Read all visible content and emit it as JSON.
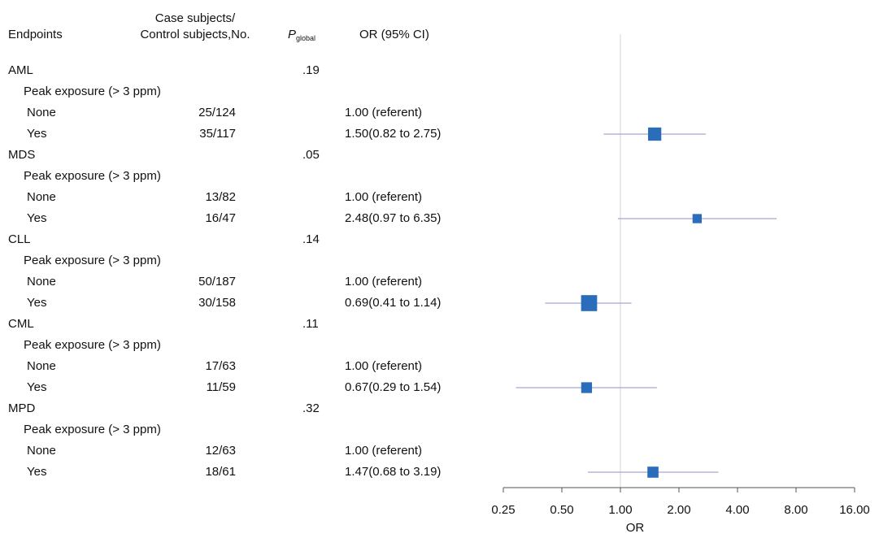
{
  "table": {
    "headers": {
      "endpoints": "Endpoints",
      "cases_line1": "Case subjects/",
      "cases_line2": "Control subjects,No.",
      "p_main": "P",
      "p_sub": "global",
      "or": "OR (95% CI)"
    },
    "rows": [
      {
        "type": "endpoint",
        "label": "AML",
        "p": ".19"
      },
      {
        "type": "sub",
        "label": "Peak exposure (> 3 ppm)"
      },
      {
        "type": "level",
        "label": "None",
        "counts": "25/124",
        "or_text": "1.00 (referent)"
      },
      {
        "type": "level",
        "label": "Yes",
        "counts": "35/117",
        "or_text": "1.50(0.82 to 2.75)"
      },
      {
        "type": "endpoint",
        "label": "MDS",
        "p": ".05"
      },
      {
        "type": "sub",
        "label": "Peak exposure (> 3 ppm)"
      },
      {
        "type": "level",
        "label": "None",
        "counts": "13/82",
        "or_text": "1.00 (referent)"
      },
      {
        "type": "level",
        "label": "Yes",
        "counts": "16/47",
        "or_text": "2.48(0.97 to 6.35)"
      },
      {
        "type": "endpoint",
        "label": "CLL",
        "p": ".14"
      },
      {
        "type": "sub",
        "label": "Peak exposure (> 3 ppm)"
      },
      {
        "type": "level",
        "label": "None",
        "counts": "50/187",
        "or_text": "1.00 (referent)"
      },
      {
        "type": "level",
        "label": "Yes",
        "counts": "30/158",
        "or_text": "0.69(0.41 to 1.14)"
      },
      {
        "type": "endpoint",
        "label": "CML",
        "p": ".11"
      },
      {
        "type": "sub",
        "label": "Peak exposure (> 3 ppm)"
      },
      {
        "type": "level",
        "label": "None",
        "counts": "17/63",
        "or_text": "1.00 (referent)"
      },
      {
        "type": "level",
        "label": "Yes",
        "counts": "11/59",
        "or_text": "0.67(0.29 to 1.54)"
      },
      {
        "type": "endpoint",
        "label": "MPD",
        "p": ".32"
      },
      {
        "type": "sub",
        "label": "Peak exposure (> 3 ppm)"
      },
      {
        "type": "level",
        "label": "None",
        "counts": "12/63",
        "or_text": "1.00 (referent)"
      },
      {
        "type": "level",
        "label": "Yes",
        "counts": "18/61",
        "or_text": "1.47(0.68 to 3.19)"
      }
    ]
  },
  "chart_data": {
    "type": "scatter",
    "subtype": "forest",
    "xlabel": "OR",
    "x_scale": "log2",
    "xlim": [
      0.25,
      16
    ],
    "x_ticks": [
      "0.25",
      "0.50",
      "1.00",
      "2.00",
      "4.00",
      "8.00",
      "16.00"
    ],
    "reference_line": 1.0,
    "marker_color": "#2a6ebb",
    "ci_color": "#9a8fc0",
    "estimates": [
      {
        "endpoint": "AML",
        "or": 1.5,
        "lower": 0.82,
        "upper": 2.75,
        "weight": 60
      },
      {
        "endpoint": "MDS",
        "or": 2.48,
        "lower": 0.97,
        "upper": 6.35,
        "weight": 29
      },
      {
        "endpoint": "CLL",
        "or": 0.69,
        "lower": 0.41,
        "upper": 1.14,
        "weight": 88
      },
      {
        "endpoint": "CML",
        "or": 0.67,
        "lower": 0.29,
        "upper": 1.54,
        "weight": 40
      },
      {
        "endpoint": "MPD",
        "or": 1.47,
        "lower": 0.68,
        "upper": 3.19,
        "weight": 42
      }
    ]
  }
}
